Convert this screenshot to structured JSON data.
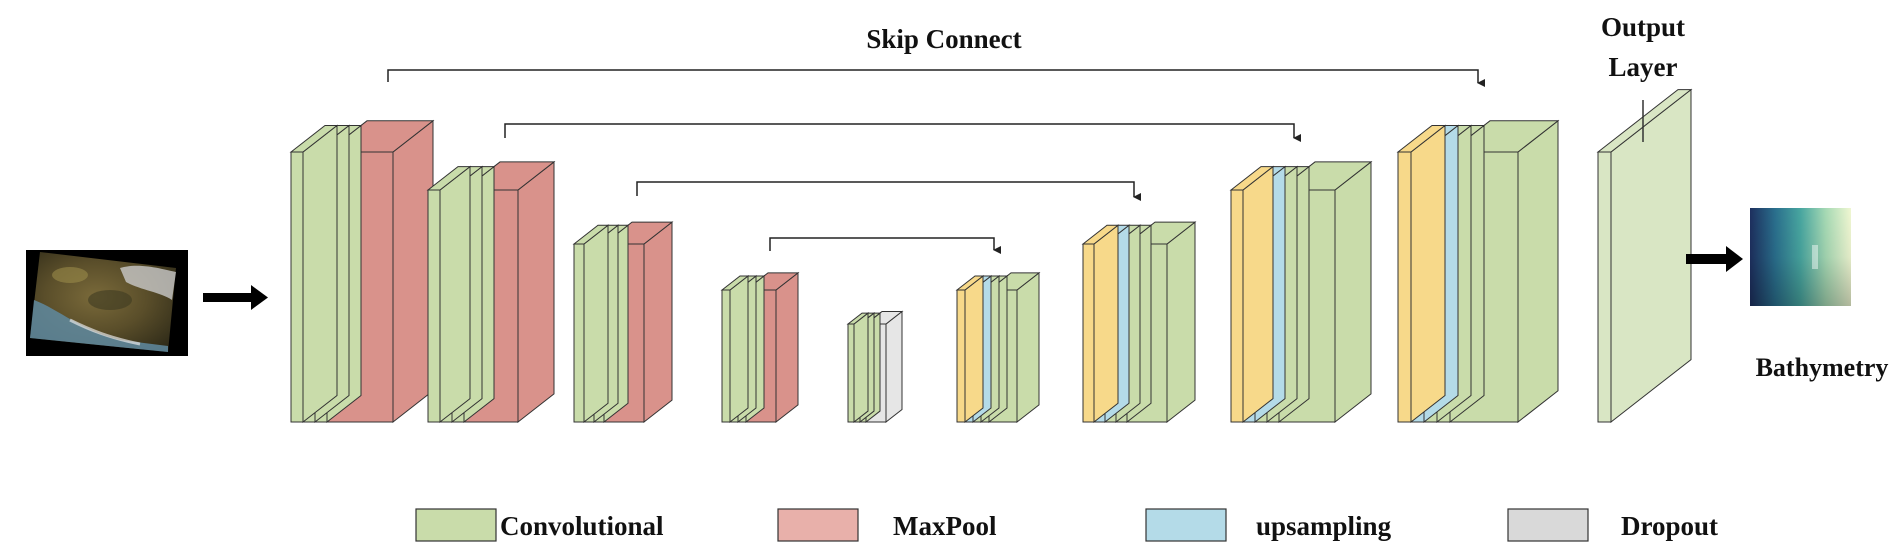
{
  "labels": {
    "skip_connect": "Skip Connect",
    "output_layer_line1": "Output",
    "output_layer_line2": "Layer",
    "bathymetry": "Bathymetry"
  },
  "legend": [
    {
      "name": "convolutional",
      "label": "Convolutional",
      "color": "#c9dcaa"
    },
    {
      "name": "maxpool",
      "label": "MaxPool",
      "color": "#e8b0aa"
    },
    {
      "name": "upsampling",
      "label": "upsampling",
      "color": "#b4dbe8"
    },
    {
      "name": "dropout",
      "label": "Dropout",
      "color": "#d9d9d9"
    }
  ],
  "colors": {
    "convolutional": "#c9dcaa",
    "maxpool": "#d9928b",
    "upsampling": "#b4dbe8",
    "dropout": "#e6e6e6",
    "concat": "#f7d98a",
    "output": "#d9e6c4",
    "outline": "#333333"
  },
  "stages": [
    {
      "name": "encoder-block-1",
      "layers": [
        "convolutional",
        "convolutional",
        "convolutional",
        "maxpool"
      ]
    },
    {
      "name": "encoder-block-2",
      "layers": [
        "convolutional",
        "convolutional",
        "convolutional",
        "maxpool"
      ]
    },
    {
      "name": "encoder-block-3",
      "layers": [
        "convolutional",
        "convolutional",
        "convolutional",
        "maxpool"
      ]
    },
    {
      "name": "encoder-block-4",
      "layers": [
        "convolutional",
        "convolutional",
        "convolutional",
        "maxpool"
      ]
    },
    {
      "name": "bottleneck-block",
      "layers": [
        "convolutional",
        "convolutional",
        "convolutional",
        "dropout"
      ]
    },
    {
      "name": "decoder-block-1",
      "layers": [
        "concat",
        "upsampling",
        "convolutional",
        "convolutional",
        "convolutional"
      ]
    },
    {
      "name": "decoder-block-2",
      "layers": [
        "concat",
        "upsampling",
        "convolutional",
        "convolutional",
        "convolutional"
      ]
    },
    {
      "name": "decoder-block-3",
      "layers": [
        "concat",
        "upsampling",
        "convolutional",
        "convolutional",
        "convolutional"
      ]
    },
    {
      "name": "decoder-block-4",
      "layers": [
        "concat",
        "upsampling",
        "convolutional",
        "convolutional",
        "convolutional"
      ]
    },
    {
      "name": "output-layer-block",
      "layers": [
        "output"
      ]
    }
  ]
}
